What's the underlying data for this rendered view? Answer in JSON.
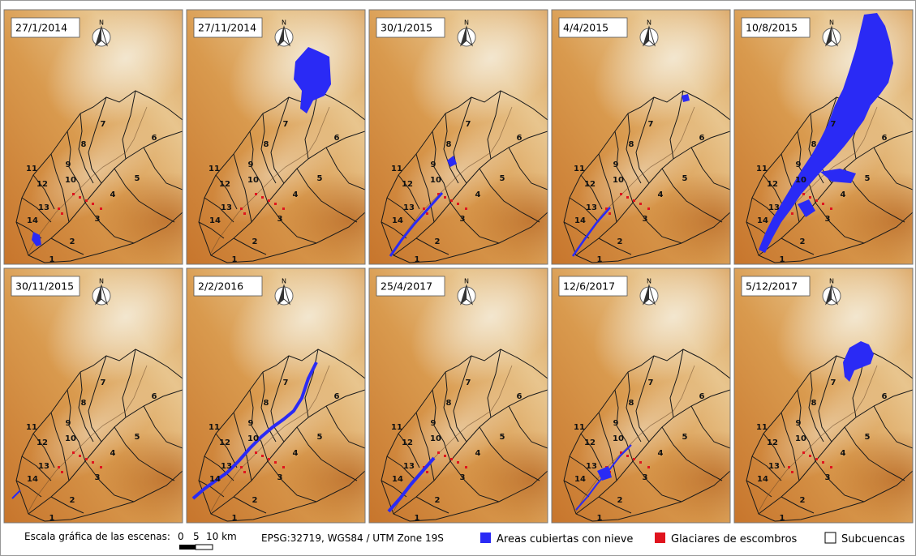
{
  "panels": [
    {
      "date": "27/1/2014"
    },
    {
      "date": "27/11/2014"
    },
    {
      "date": "30/1/2015"
    },
    {
      "date": "4/4/2015"
    },
    {
      "date": "10/8/2015"
    },
    {
      "date": "30/11/2015"
    },
    {
      "date": "2/2/2016"
    },
    {
      "date": "25/4/2017"
    },
    {
      "date": "12/6/2017"
    },
    {
      "date": "5/12/2017"
    }
  ],
  "north_label": "N",
  "subbasin_labels": [
    "1",
    "2",
    "3",
    "4",
    "5",
    "6",
    "7",
    "8",
    "9",
    "10",
    "11",
    "12",
    "13",
    "14"
  ],
  "legend": {
    "scale_title": "Escala gráfica de las escenas:",
    "scale_ticks": [
      "0",
      "5",
      "10 km"
    ],
    "projection": "EPSG:32719, WGS84 / UTM Zone 19S",
    "items": [
      {
        "label": "Areas cubiertas con nieve",
        "color": "#2a2af5"
      },
      {
        "label": "Glaciares de escombros",
        "color": "#e0141e"
      },
      {
        "label": "Subcuencas",
        "color": "#ffffff"
      }
    ]
  }
}
